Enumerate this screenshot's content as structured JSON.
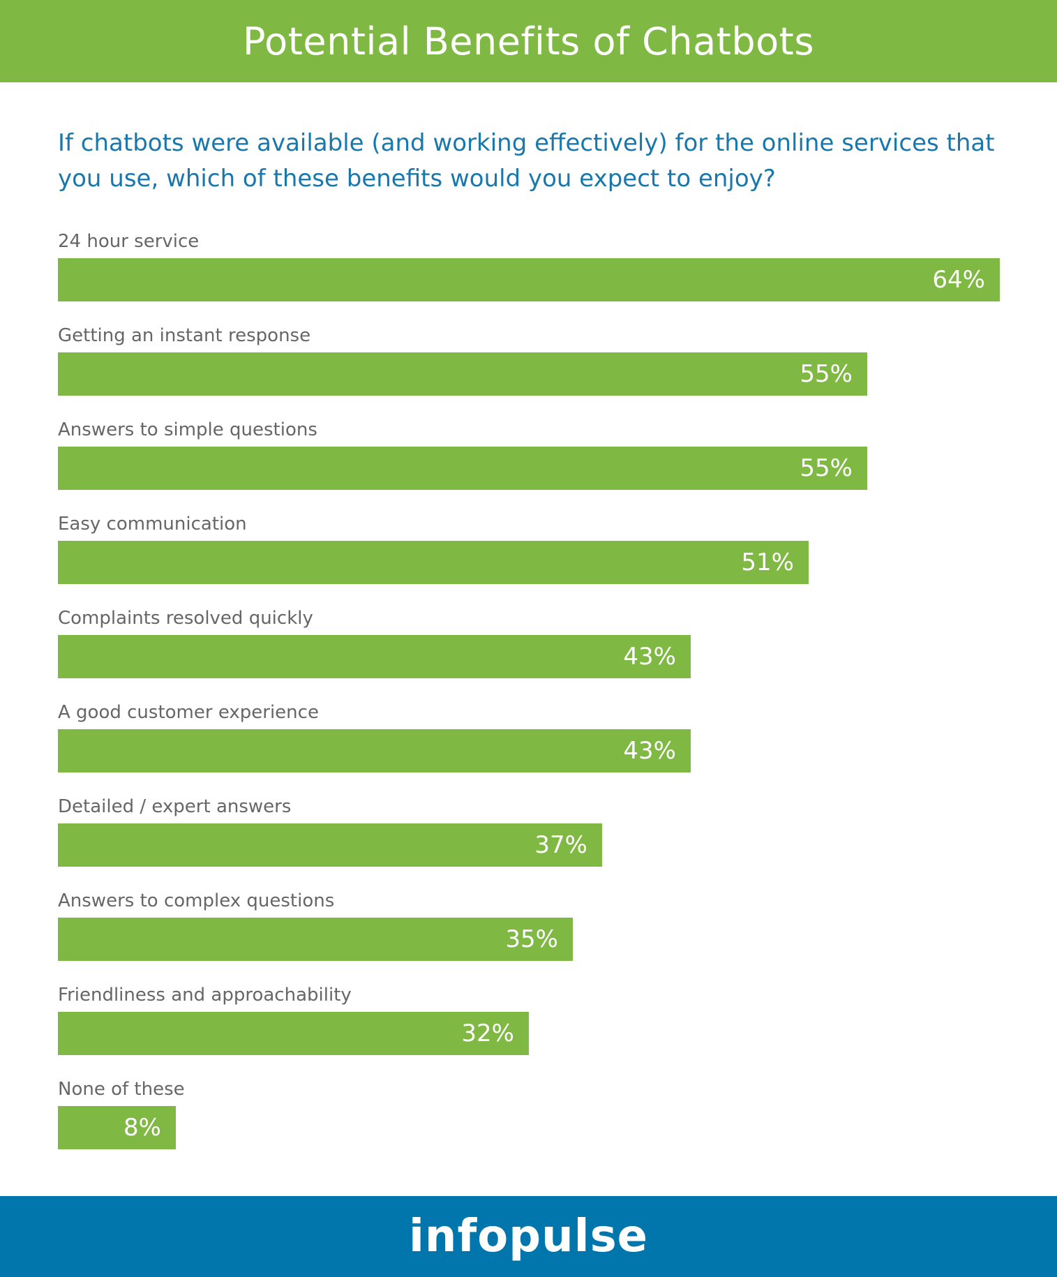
{
  "header": {
    "title": "Potential Benefits of Chatbots"
  },
  "colors": {
    "bar": "#7fb842",
    "header": "#7fb842",
    "footer": "#0076ac",
    "question": "#1878ad"
  },
  "chart_data": {
    "type": "bar",
    "orientation": "horizontal",
    "title": "Potential Benefits of Chatbots",
    "subtitle": "If chatbots were available (and working effectively) for the online services that you use, which of these benefits would you expect to enjoy?",
    "categories": [
      "24 hour service",
      "Getting an instant response",
      "Answers to simple questions",
      "Easy communication",
      "Complaints resolved quickly",
      "A good customer experience",
      "Detailed / expert answers",
      "Answers to complex questions",
      "Friendliness and approachability",
      "None of these"
    ],
    "values": [
      64,
      55,
      55,
      51,
      43,
      43,
      37,
      35,
      32,
      8
    ],
    "value_labels": [
      "64%",
      "55%",
      "55%",
      "51%",
      "43%",
      "43%",
      "37%",
      "35%",
      "32%",
      "8%"
    ],
    "unit": "%",
    "xlim": [
      0,
      64
    ],
    "grid": false
  },
  "footer": {
    "logo_text": "infopulse"
  }
}
